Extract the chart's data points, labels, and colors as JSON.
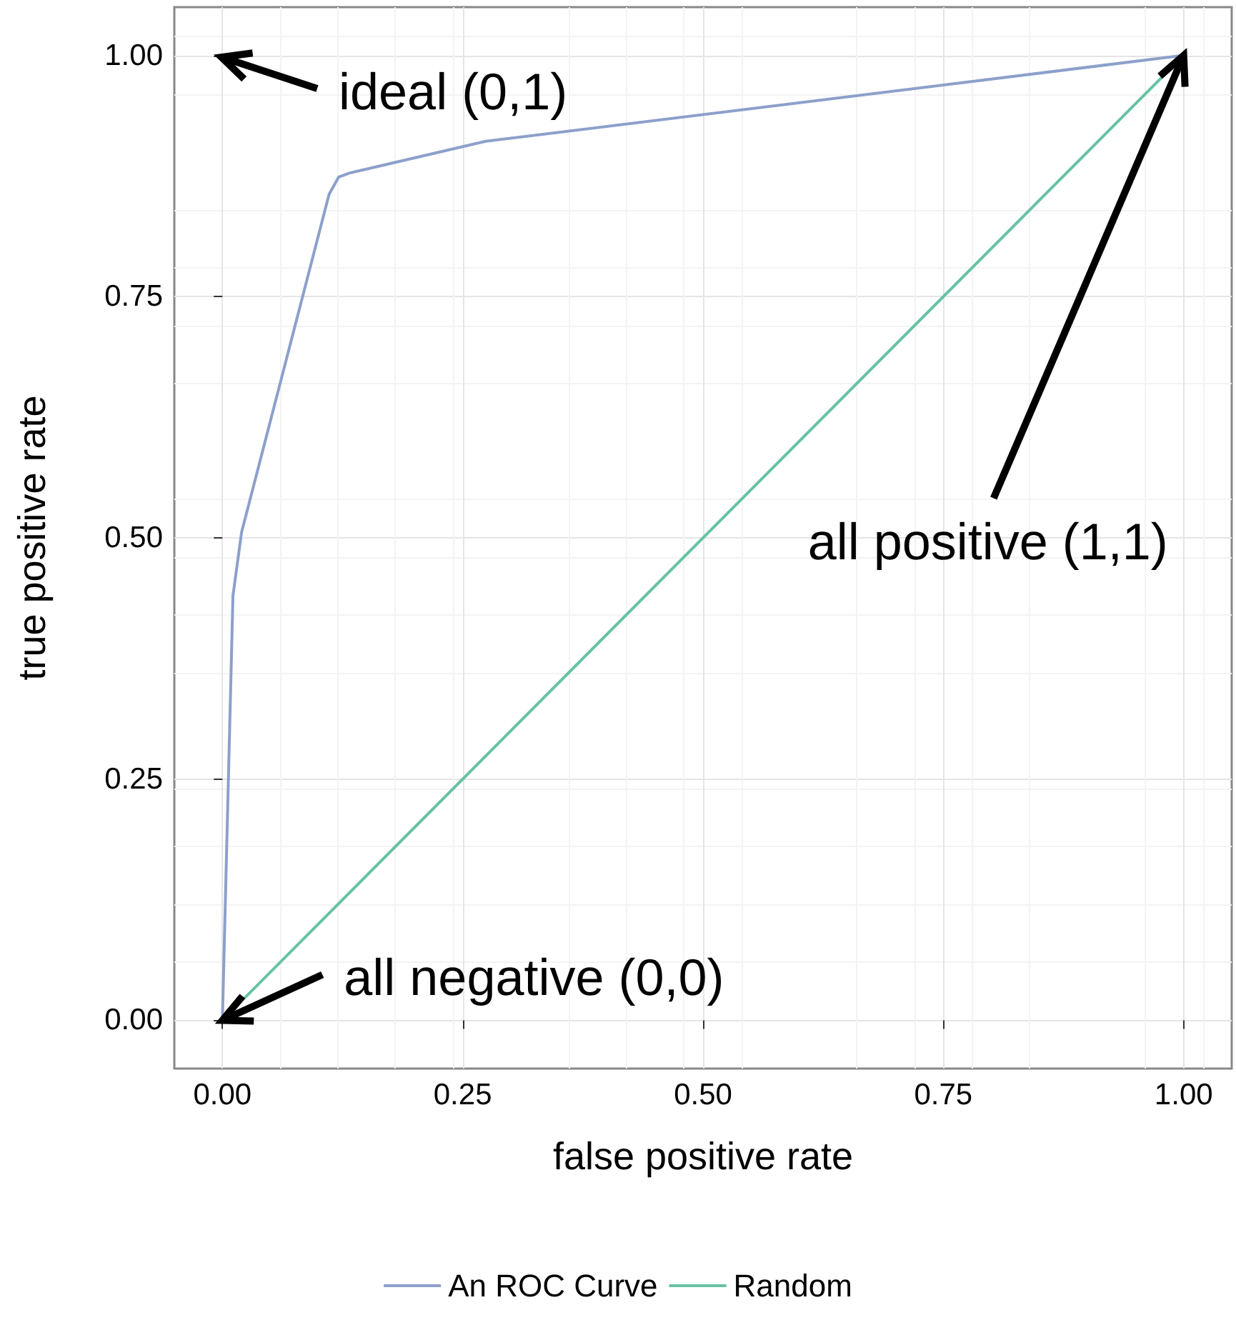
{
  "chart_data": {
    "type": "line",
    "xlabel": "false positive rate",
    "ylabel": "true positive rate",
    "xlim": [
      -0.05,
      1.05
    ],
    "ylim": [
      -0.05,
      1.05
    ],
    "xticks": [
      {
        "value": 0,
        "label": "0.00"
      },
      {
        "value": 0.25,
        "label": "0.25"
      },
      {
        "value": 0.5,
        "label": "0.50"
      },
      {
        "value": 0.75,
        "label": "0.75"
      },
      {
        "value": 1,
        "label": "1.00"
      }
    ],
    "yticks": [
      {
        "value": 0,
        "label": "0.00"
      },
      {
        "value": 0.25,
        "label": "0.25"
      },
      {
        "value": 0.5,
        "label": "0.50"
      },
      {
        "value": 0.75,
        "label": "0.75"
      },
      {
        "value": 1,
        "label": "1.00"
      }
    ],
    "series": [
      {
        "name": "An ROC Curve",
        "color": "#8da0cb",
        "x": [
          0,
          0.011,
          0.02,
          0.111,
          0.121,
          0.132,
          0.274,
          1
        ],
        "values": [
          0,
          0.44,
          0.506,
          0.856,
          0.874,
          0.878,
          0.911,
          1
        ]
      },
      {
        "name": "Random",
        "color": "#66c2a5",
        "x": [
          0,
          1
        ],
        "values": [
          0,
          1
        ]
      }
    ],
    "annotations": [
      "ideal (0,1)",
      {
        "text": "all positive (1,1)",
        "x": 1,
        "y": 1
      },
      {
        "text": "all negative (0,0)",
        "x": 0,
        "y": 0
      }
    ],
    "grid": true,
    "legend": "bottom",
    "marker": "none",
    "line_style": "solid"
  }
}
